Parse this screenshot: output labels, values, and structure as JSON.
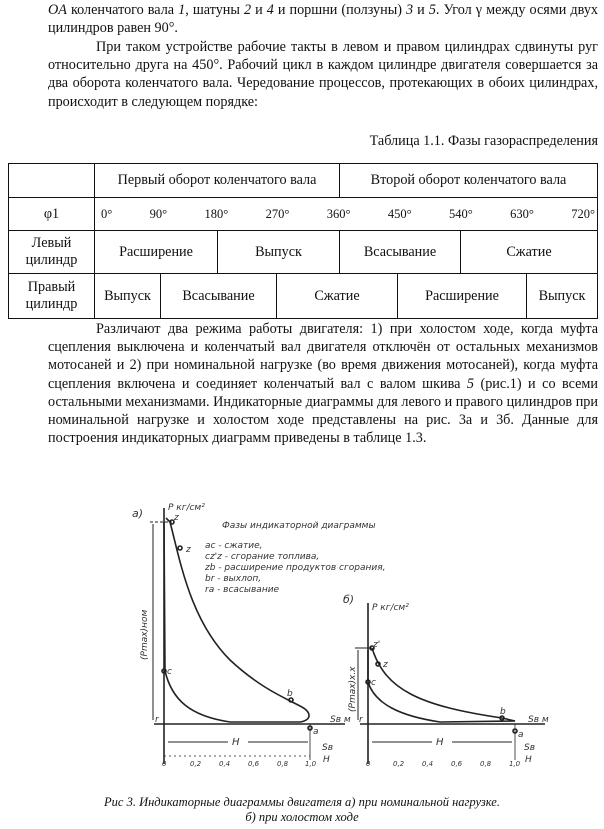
{
  "paragraphs": {
    "p1_a": "OA",
    "p1_b": " коленчатого вала ",
    "p1_c": "1",
    "p1_d": ", шатуны ",
    "p1_e": "2",
    "p1_f": " и ",
    "p1_g": "4",
    "p1_h": " и поршни (ползуны) ",
    "p1_i": "3",
    "p1_j": " и ",
    "p1_k": "5",
    "p1_l": ". Угол γ между осями двух цилиндров равен 90°.",
    "p2": "При таком устройстве рабочие такты в левом и правом цилиндрах сдвинуты руг относительно друга на 450°. Рабочий цикл в каждом цилиндре двигателя совершается за два оборота коленчатого вала. Чередование процессов, протекающих в обоих цилиндрах, происходит в следующем порядке:",
    "p3_a": "Различают два режима работы двигателя: 1) при холостом ходе, когда муфта сцепления выключена и коленчатый вал двигателя отключён от остальных механизмов мотосаней и 2) при номинальной нагрузке (во время движения мотосаней), когда муфта сцепления включена и соединяет коленчатый вал с валом шкива ",
    "p3_b": "5",
    "p3_c": " (рис.1) и со всеми остальными механизмами. Индикаторные диаграммы для левого и правого цилиндров при номинальной нагрузке и холостом ходе представлены на рис. 3а и 3б. Данные для построения индикаторных диаграмм приведены в таблице 1.3."
  },
  "table": {
    "caption": "Таблица 1.1. Фазы газораспределения",
    "header": [
      "",
      "Первый оборот коленчатого вала",
      "Второй оборот коленчатого вала"
    ],
    "phi_label": "φ1",
    "angles": [
      "0°",
      "90°",
      "180°",
      "270°",
      "360°",
      "450°",
      "540°",
      "630°",
      "720°"
    ],
    "left_label": "Левый цилиндр",
    "left": [
      "Расширение",
      "Выпуск",
      "Всасывание",
      "Сжатие"
    ],
    "right_label": "Правый цилиндр",
    "right": [
      "Выпуск",
      "Всасывание",
      "Сжатие",
      "Расширение",
      "Выпуск"
    ]
  },
  "figure": {
    "a_label": "а)",
    "b_label": "б)",
    "p_axis": "P кг/см²",
    "legend_title": "Фазы индикаторной диаграммы",
    "legend": [
      "ac - сжатие,",
      "cz'z - сгорание топлива,",
      "zb - расширение продуктов сгорания,",
      "br - выхлоп,",
      "ra - всасывание"
    ],
    "pmax_nom": "(Pmax)ном",
    "pmax_xx": "(Pmax)х.х",
    "s_axis": "Sв м",
    "ratio_axis_top": "Sв",
    "ratio_axis_bottom": "H",
    "stroke": "H",
    "ticks": [
      "0",
      "0,2",
      "0,4",
      "0,6",
      "0,8",
      "1,0"
    ],
    "points": {
      "z": "z",
      "z_prime": "z'",
      "c": "c",
      "b": "b",
      "a": "a",
      "r": "r"
    }
  },
  "caption": {
    "line1": "Рис 3. Индикаторные диаграммы двигателя а) при номинальной нагрузке.",
    "line2": "б) при холостом ходе"
  }
}
